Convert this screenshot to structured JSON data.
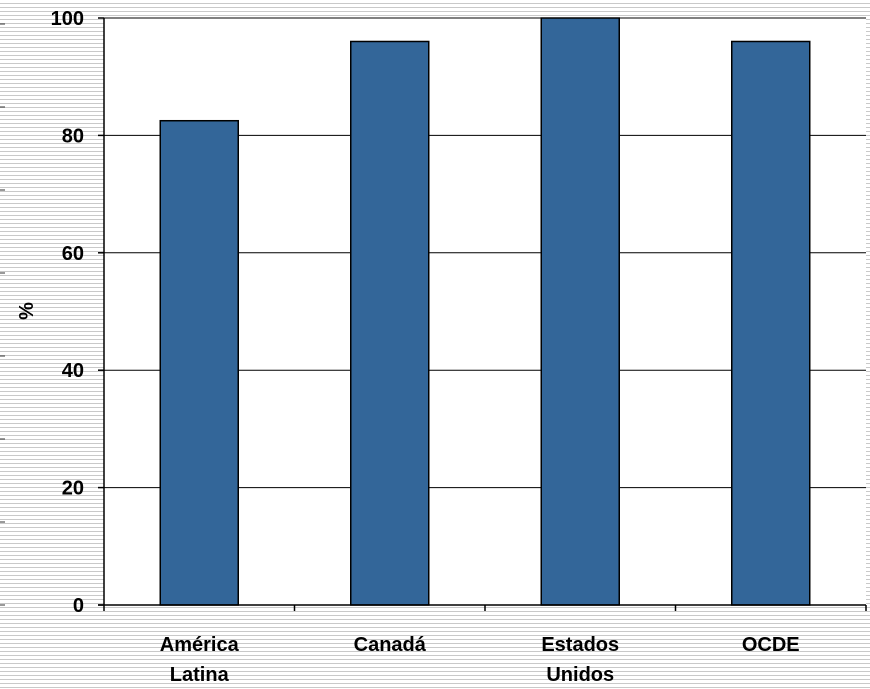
{
  "chart_data": {
    "type": "bar",
    "title": "",
    "xlabel": "",
    "ylabel": "%",
    "ylim": [
      0,
      100
    ],
    "yticks": [
      0,
      20,
      40,
      60,
      80,
      100
    ],
    "categories": [
      [
        "América",
        "Latina"
      ],
      [
        "Canadá"
      ],
      [
        "Estados",
        "Unidos"
      ],
      [
        "OCDE"
      ]
    ],
    "values": [
      82.5,
      96,
      100,
      96
    ],
    "grid": true,
    "legend": "none",
    "colors": {
      "bar_fill": "#336699",
      "bar_stroke": "#000000",
      "grid": "#000000",
      "axis": "#000000",
      "background_stripe": "#c9c9c9"
    }
  }
}
